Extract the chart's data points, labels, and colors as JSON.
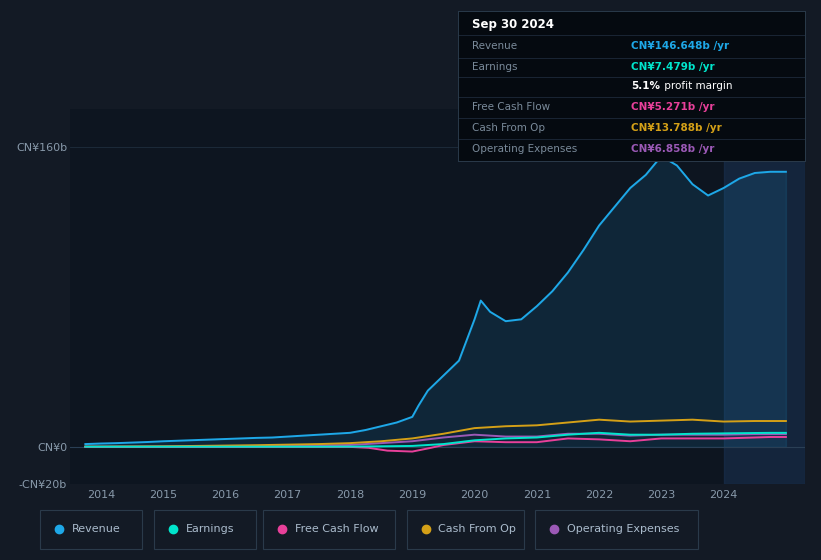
{
  "background_color": "#131a25",
  "chart_bg_color": "#0d1520",
  "grid_color": "#1e2d3d",
  "ylim": [
    -20,
    180
  ],
  "xlim_start": 2013.5,
  "xlim_end": 2025.3,
  "xticks": [
    2014,
    2015,
    2016,
    2017,
    2018,
    2019,
    2020,
    2021,
    2022,
    2023,
    2024
  ],
  "ytick_labels": [
    "-CN¥20b",
    "CN¥0",
    "CN¥160b"
  ],
  "ytick_values": [
    -20,
    0,
    160
  ],
  "series": {
    "Revenue": {
      "color": "#1ea8e8",
      "x": [
        2013.75,
        2014.0,
        2014.25,
        2014.5,
        2014.75,
        2015.0,
        2015.25,
        2015.5,
        2015.75,
        2016.0,
        2016.25,
        2016.5,
        2016.75,
        2017.0,
        2017.25,
        2017.5,
        2017.75,
        2018.0,
        2018.25,
        2018.5,
        2018.75,
        2019.0,
        2019.1,
        2019.25,
        2019.5,
        2019.75,
        2020.0,
        2020.1,
        2020.25,
        2020.5,
        2020.75,
        2021.0,
        2021.25,
        2021.5,
        2021.75,
        2022.0,
        2022.25,
        2022.5,
        2022.75,
        2023.0,
        2023.25,
        2023.5,
        2023.75,
        2024.0,
        2024.25,
        2024.5,
        2024.75,
        2025.0
      ],
      "y": [
        1.5,
        1.8,
        2.0,
        2.3,
        2.6,
        3.0,
        3.3,
        3.6,
        3.9,
        4.2,
        4.5,
        4.8,
        5.0,
        5.5,
        6.0,
        6.5,
        7.0,
        7.5,
        9.0,
        11.0,
        13.0,
        16.0,
        22.0,
        30.0,
        38.0,
        46.0,
        68.0,
        78.0,
        72.0,
        67.0,
        68.0,
        75.0,
        83.0,
        93.0,
        105.0,
        118.0,
        128.0,
        138.0,
        145.0,
        155.0,
        150.0,
        140.0,
        134.0,
        138.0,
        143.0,
        146.0,
        146.648,
        146.648
      ]
    },
    "Earnings": {
      "color": "#00e5cc",
      "x": [
        2013.75,
        2014.0,
        2014.5,
        2015.0,
        2015.5,
        2016.0,
        2016.5,
        2017.0,
        2017.5,
        2018.0,
        2018.5,
        2019.0,
        2019.5,
        2020.0,
        2020.5,
        2021.0,
        2021.5,
        2022.0,
        2022.5,
        2023.0,
        2023.5,
        2024.0,
        2024.5,
        2024.75,
        2025.0
      ],
      "y": [
        0.1,
        0.1,
        0.1,
        0.1,
        0.1,
        0.1,
        0.1,
        0.1,
        0.1,
        0.15,
        0.3,
        0.5,
        1.5,
        3.5,
        4.5,
        5.0,
        6.5,
        7.5,
        6.5,
        6.5,
        7.0,
        7.2,
        7.4,
        7.479,
        7.479
      ]
    },
    "FreeCashFlow": {
      "color": "#e8409a",
      "x": [
        2013.75,
        2014.0,
        2014.5,
        2015.0,
        2015.5,
        2016.0,
        2016.5,
        2017.0,
        2017.5,
        2018.0,
        2018.3,
        2018.6,
        2019.0,
        2019.3,
        2019.5,
        2020.0,
        2020.5,
        2021.0,
        2021.5,
        2022.0,
        2022.5,
        2023.0,
        2023.5,
        2024.0,
        2024.5,
        2024.75,
        2025.0
      ],
      "y": [
        0.0,
        0.0,
        0.0,
        0.0,
        0.0,
        0.0,
        0.0,
        0.0,
        0.0,
        0.0,
        -0.5,
        -2.0,
        -2.5,
        -0.5,
        1.0,
        3.0,
        2.5,
        2.5,
        4.5,
        4.0,
        3.0,
        4.5,
        4.5,
        4.5,
        5.0,
        5.271,
        5.271
      ]
    },
    "CashFromOp": {
      "color": "#d4a017",
      "x": [
        2013.75,
        2014.0,
        2014.5,
        2015.0,
        2015.5,
        2016.0,
        2016.5,
        2017.0,
        2017.5,
        2018.0,
        2018.5,
        2019.0,
        2019.5,
        2020.0,
        2020.5,
        2021.0,
        2021.5,
        2022.0,
        2022.5,
        2023.0,
        2023.5,
        2024.0,
        2024.5,
        2024.75,
        2025.0
      ],
      "y": [
        0.1,
        0.1,
        0.2,
        0.3,
        0.5,
        0.7,
        0.9,
        1.2,
        1.5,
        2.0,
        3.0,
        4.5,
        7.0,
        10.0,
        11.0,
        11.5,
        13.0,
        14.5,
        13.5,
        14.0,
        14.5,
        13.5,
        13.788,
        13.788,
        13.788
      ]
    },
    "OperatingExpenses": {
      "color": "#9b59b6",
      "x": [
        2013.75,
        2014.0,
        2014.5,
        2015.0,
        2015.5,
        2016.0,
        2016.5,
        2017.0,
        2017.5,
        2018.0,
        2018.5,
        2019.0,
        2019.5,
        2020.0,
        2020.5,
        2021.0,
        2021.5,
        2022.0,
        2022.5,
        2023.0,
        2023.5,
        2024.0,
        2024.5,
        2024.75,
        2025.0
      ],
      "y": [
        0.1,
        0.1,
        0.1,
        0.1,
        0.2,
        0.3,
        0.4,
        0.6,
        0.8,
        1.0,
        2.0,
        3.0,
        5.0,
        6.5,
        5.5,
        5.5,
        7.0,
        7.0,
        6.0,
        6.5,
        6.5,
        6.5,
        6.858,
        6.858,
        6.858
      ]
    }
  },
  "tooltip": {
    "date": "Sep 30 2024",
    "revenue_label": "Revenue",
    "revenue_val": "CN¥146.648b /yr",
    "revenue_color": "#1ea8e8",
    "earnings_label": "Earnings",
    "earnings_val": "CN¥7.479b /yr",
    "earnings_color": "#00e5cc",
    "profit_margin_bold": "5.1%",
    "profit_margin_rest": " profit margin",
    "fcf_label": "Free Cash Flow",
    "fcf_val": "CN¥5.271b /yr",
    "fcf_color": "#e8409a",
    "cashop_label": "Cash From Op",
    "cashop_val": "CN¥13.788b /yr",
    "cashop_color": "#d4a017",
    "opex_label": "Operating Expenses",
    "opex_val": "CN¥6.858b /yr",
    "opex_color": "#9b59b6"
  },
  "legend": [
    {
      "label": "Revenue",
      "color": "#1ea8e8"
    },
    {
      "label": "Earnings",
      "color": "#00e5cc"
    },
    {
      "label": "Free Cash Flow",
      "color": "#e8409a"
    },
    {
      "label": "Cash From Op",
      "color": "#d4a017"
    },
    {
      "label": "Operating Expenses",
      "color": "#9b59b6"
    }
  ],
  "shaded_region_start": 2024.0,
  "shaded_region_end": 2025.3,
  "shade_color": "#1a3050"
}
